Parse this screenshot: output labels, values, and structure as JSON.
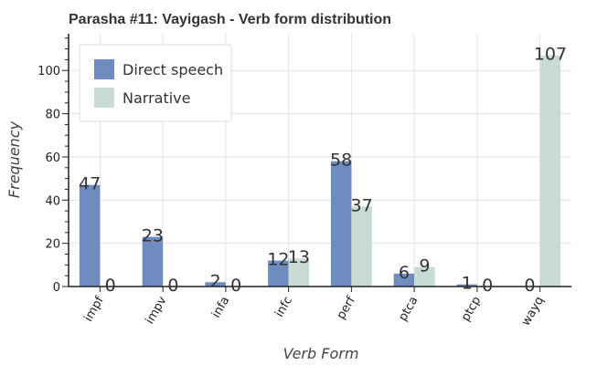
{
  "chart_data": {
    "type": "bar",
    "title": "Parasha #11: Vayigash - Verb form distribution",
    "xlabel": "Verb Form",
    "ylabel": "Frequency",
    "categories": [
      "impf",
      "impv",
      "infa",
      "infc",
      "perf",
      "ptca",
      "ptcp",
      "wayq"
    ],
    "series": [
      {
        "name": "Direct speech",
        "color": "#6f8cc0",
        "values": [
          47,
          23,
          2,
          12,
          58,
          6,
          1,
          0
        ]
      },
      {
        "name": "Narrative",
        "color": "#c9dbd5",
        "values": [
          0,
          0,
          0,
          13,
          37,
          9,
          0,
          107
        ]
      }
    ],
    "ylim": [
      0,
      117
    ],
    "yticks": [
      0,
      20,
      40,
      60,
      80,
      100
    ],
    "grid": true,
    "legend_position": "top-left",
    "bar_labels": true
  }
}
